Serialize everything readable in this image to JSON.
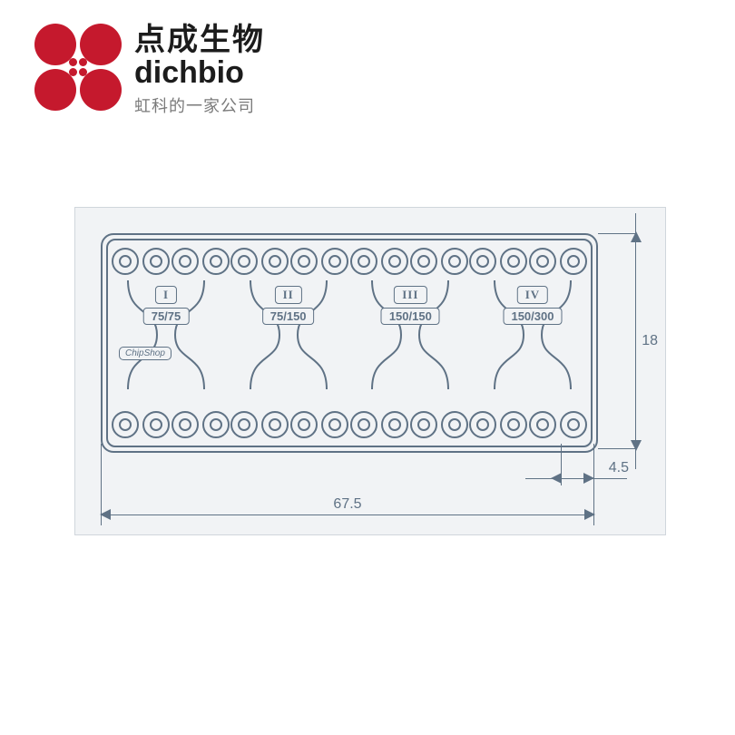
{
  "brand": {
    "cn": "点成生物",
    "en": "dichbio",
    "sub": "虹科的一家公司",
    "color": "#c5192d"
  },
  "diagram": {
    "line_color": "#5f7285",
    "bg_color": "#f1f3f5",
    "frame_border": "#d0d6dc",
    "chip_brand": "ChipShop",
    "channels": [
      {
        "roman": "I",
        "ratio": "75/75"
      },
      {
        "roman": "II",
        "ratio": "75/150"
      },
      {
        "roman": "III",
        "ratio": "150/150"
      },
      {
        "roman": "IV",
        "ratio": "150/300"
      }
    ],
    "port_pairs_per_row": 8,
    "dims": {
      "height": "18",
      "pitch": "4.5",
      "width": "67.5"
    }
  }
}
